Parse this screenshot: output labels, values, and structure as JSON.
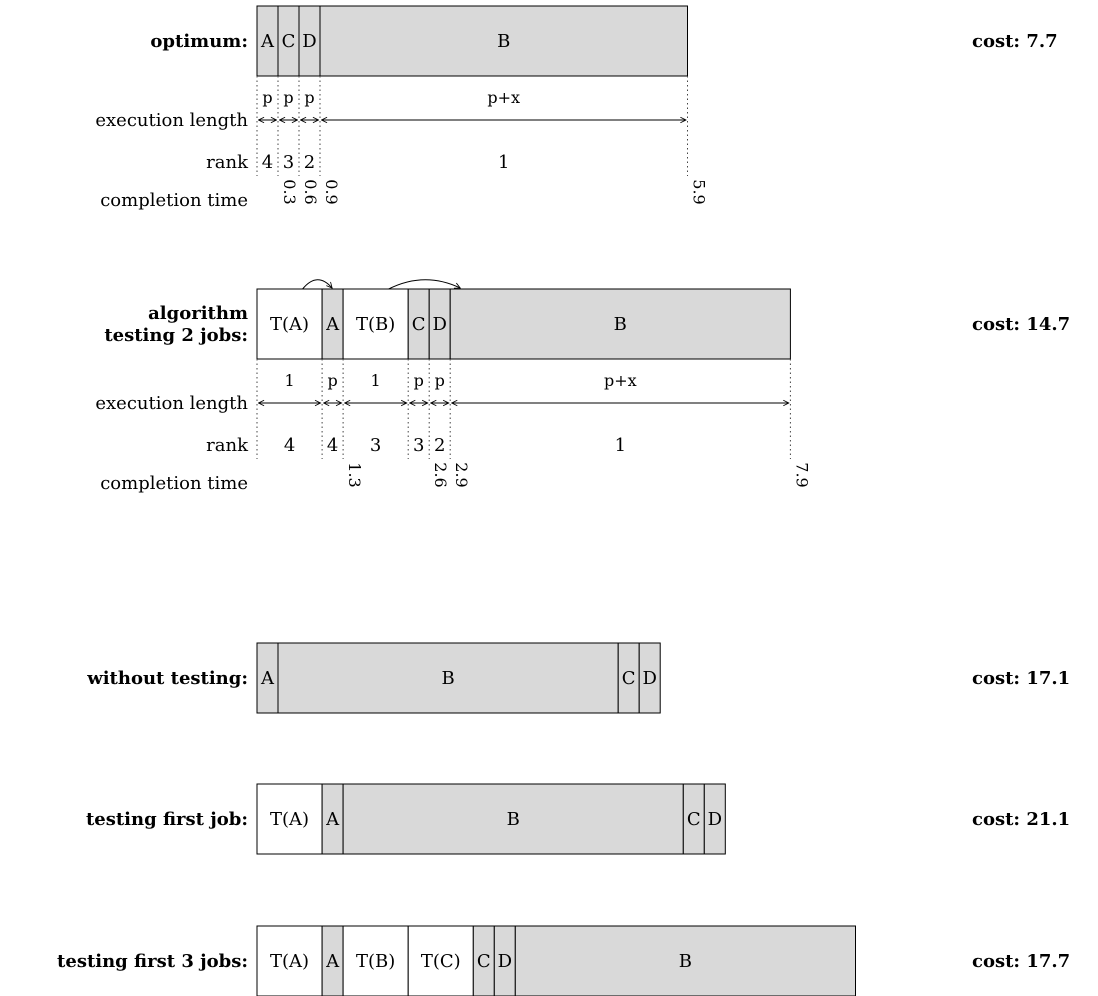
{
  "colors": {
    "job": "#d9d9d9",
    "test": "#ffffff",
    "stroke": "#000000"
  },
  "rows": [
    {
      "id": "optimum",
      "label": [
        "optimum:"
      ],
      "cost": "cost: 7.7",
      "blocks": [
        {
          "text": "A",
          "kind": "job",
          "w": 1
        },
        {
          "text": "C",
          "kind": "job",
          "w": 1
        },
        {
          "text": "D",
          "kind": "job",
          "w": 1
        },
        {
          "text": "B",
          "kind": "job",
          "w": 17.5
        }
      ],
      "detail": {
        "exec_label": "execution length",
        "exec": [
          "p",
          "p",
          "p",
          "p+x"
        ],
        "rank_label": "rank",
        "ranks": [
          "4",
          "3",
          "2",
          "1"
        ],
        "comp_label": "completion time",
        "completions": [
          {
            "after": 0,
            "value": "0.3"
          },
          {
            "after": 1,
            "value": "0.6"
          },
          {
            "after": 2,
            "value": "0.9"
          },
          {
            "after": 3,
            "value": "5.9"
          }
        ],
        "arrows": []
      }
    },
    {
      "id": "algorithm",
      "label": [
        "algorithm",
        "testing 2 jobs:"
      ],
      "cost": "cost: 14.7",
      "blocks": [
        {
          "text": "T(A)",
          "kind": "test",
          "w": 3.1
        },
        {
          "text": "A",
          "kind": "job",
          "w": 1
        },
        {
          "text": "T(B)",
          "kind": "test",
          "w": 3.1
        },
        {
          "text": "C",
          "kind": "job",
          "w": 1
        },
        {
          "text": "D",
          "kind": "job",
          "w": 1
        },
        {
          "text": "B",
          "kind": "job",
          "w": 16.2
        }
      ],
      "detail": {
        "exec_label": "execution length",
        "exec": [
          "1",
          "p",
          "1",
          "p",
          "p",
          "p+x"
        ],
        "rank_label": "rank",
        "ranks": [
          "4",
          "4",
          "3",
          "3",
          "2",
          "1"
        ],
        "comp_label": "completion time",
        "completions": [
          {
            "after": 1,
            "value": "1.3"
          },
          {
            "after": 3,
            "value": "2.6"
          },
          {
            "after": 4,
            "value": "2.9"
          },
          {
            "after": 5,
            "value": "7.9"
          }
        ],
        "arrows": [
          {
            "from": 0,
            "to": 1
          },
          {
            "from": 2,
            "to": 5
          }
        ]
      }
    },
    {
      "id": "without",
      "label": [
        "without testing:"
      ],
      "cost": "cost: 17.1",
      "blocks": [
        {
          "text": "A",
          "kind": "job",
          "w": 1
        },
        {
          "text": "B",
          "kind": "job",
          "w": 16.2
        },
        {
          "text": "C",
          "kind": "job",
          "w": 1
        },
        {
          "text": "D",
          "kind": "job",
          "w": 1
        }
      ]
    },
    {
      "id": "first",
      "label": [
        "testing first job:"
      ],
      "cost": "cost: 21.1",
      "blocks": [
        {
          "text": "T(A)",
          "kind": "test",
          "w": 3.1
        },
        {
          "text": "A",
          "kind": "job",
          "w": 1
        },
        {
          "text": "B",
          "kind": "job",
          "w": 16.2
        },
        {
          "text": "C",
          "kind": "job",
          "w": 1
        },
        {
          "text": "D",
          "kind": "job",
          "w": 1
        }
      ]
    },
    {
      "id": "first3",
      "label": [
        "testing first 3 jobs:"
      ],
      "cost": "cost: 17.7",
      "blocks": [
        {
          "text": "T(A)",
          "kind": "test",
          "w": 3.1
        },
        {
          "text": "A",
          "kind": "job",
          "w": 1
        },
        {
          "text": "T(B)",
          "kind": "test",
          "w": 3.1
        },
        {
          "text": "T(C)",
          "kind": "test",
          "w": 3.1
        },
        {
          "text": "C",
          "kind": "job",
          "w": 1
        },
        {
          "text": "D",
          "kind": "job",
          "w": 1
        },
        {
          "text": "B",
          "kind": "job",
          "w": 16.2
        }
      ]
    }
  ]
}
